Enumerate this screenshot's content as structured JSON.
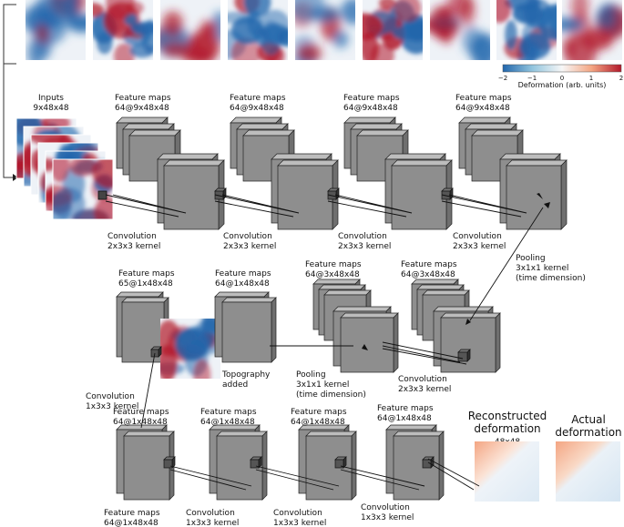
{
  "colorbar": {
    "ticks": [
      "−2",
      "−1",
      "0",
      "1",
      "2"
    ],
    "label": "Deformation (arb. units)",
    "colors": {
      "neg": "#2166ac",
      "mid": "#f7f7f7",
      "pos": "#b2182b"
    }
  },
  "input_block": {
    "title": "Inputs",
    "dims": "9x48x48"
  },
  "row1": [
    {
      "title": "Feature maps",
      "dims": "64@9x48x48",
      "caption1": "Convolution",
      "caption2": "2x3x3 kernel"
    },
    {
      "title": "Feature maps",
      "dims": "64@9x48x48",
      "caption1": "Convolution",
      "caption2": "2x3x3 kernel"
    },
    {
      "title": "Feature maps",
      "dims": "64@9x48x48",
      "caption1": "Convolution",
      "caption2": "2x3x3 kernel"
    },
    {
      "title": "Feature maps",
      "dims": "64@9x48x48",
      "caption1": "",
      "caption2": ""
    }
  ],
  "row1_last_caption": {
    "caption1": "Convolution",
    "caption2": "2x3x3 kernel"
  },
  "pooling1": {
    "l1": "Pooling",
    "l2": "3x1x1 kernel",
    "l3": "(time dimension)"
  },
  "row2": [
    {
      "title": "Feature maps",
      "dims": "65@1x48x48"
    },
    {
      "title": "Feature maps",
      "dims": "64@1x48x48"
    },
    {
      "title": "Feature maps",
      "dims": "64@3x48x48"
    },
    {
      "title": "Feature maps",
      "dims": "64@3x48x48"
    }
  ],
  "topography": {
    "l1": "Topography",
    "l2": "added"
  },
  "pooling2": {
    "l1": "Pooling",
    "l2": "3x1x1 kernel",
    "l3": "(time dimension)"
  },
  "conv_row2": {
    "l1": "Convolution",
    "l2": "2x3x3 kernel"
  },
  "conv_left": {
    "l1": "Convolution",
    "l2": "1x3x3 kernel"
  },
  "row3": [
    {
      "title": "Feature maps",
      "dims": "64@1x48x48",
      "bottom_title": "Feature maps",
      "bottom_dims": "64@1x48x48"
    },
    {
      "title": "Feature maps",
      "dims": "64@1x48x48",
      "bottom_title": "Convolution",
      "bottom_dims": "1x3x3 kernel"
    },
    {
      "title": "Feature maps",
      "dims": "64@1x48x48",
      "bottom_title": "Convolution",
      "bottom_dims": "1x3x3 kernel"
    },
    {
      "title": "Feature maps",
      "dims": "64@1x48x48",
      "bottom_title": "Convolution",
      "bottom_dims": "1x3x3 kernel"
    }
  ],
  "reconstructed": {
    "l1": "Reconstructed",
    "l2": "deformation",
    "dims": "48x48"
  },
  "actual": {
    "l1": "Actual",
    "l2": "deformation"
  }
}
